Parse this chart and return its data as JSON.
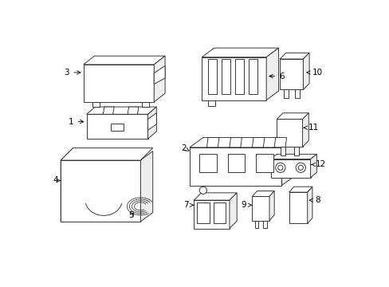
{
  "background_color": "#ffffff",
  "line_color": "#2a2a2a",
  "text_color": "#000000",
  "fig_width": 4.89,
  "fig_height": 3.6,
  "dpi": 100,
  "lw": 0.65
}
